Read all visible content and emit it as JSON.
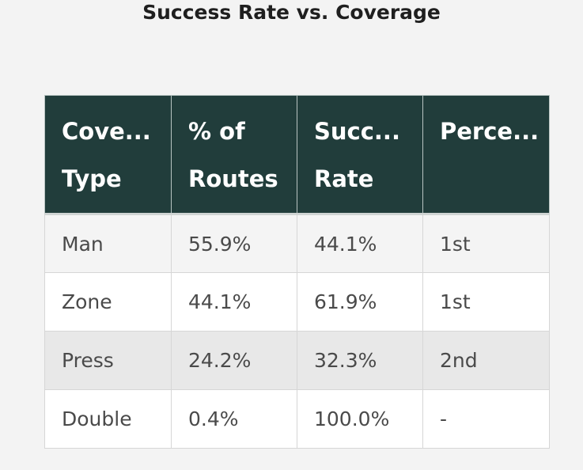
{
  "title": "Success Rate vs. Coverage",
  "table": {
    "headers": [
      [
        "Cove...",
        "Type"
      ],
      [
        "% of",
        "Routes"
      ],
      [
        "Succ...",
        "Rate"
      ],
      [
        "Perce...",
        ""
      ]
    ],
    "rows": [
      [
        "Man",
        "55.9%",
        "44.1%",
        "1st"
      ],
      [
        "Zone",
        "44.1%",
        "61.9%",
        "1st"
      ],
      [
        "Press",
        "24.2%",
        "32.3%",
        "2nd"
      ],
      [
        "Double",
        "0.4%",
        "100.0%",
        "-"
      ]
    ]
  },
  "chart_data": {
    "type": "table",
    "title": "Success Rate vs. Coverage",
    "columns": [
      "Cove... Type",
      "% of Routes",
      "Succ... Rate",
      "Perce..."
    ],
    "rows": [
      {
        "coverage_type": "Man",
        "pct_of_routes": 55.9,
        "success_rate": 44.1,
        "percentile": "1st"
      },
      {
        "coverage_type": "Zone",
        "pct_of_routes": 44.1,
        "success_rate": 61.9,
        "percentile": "1st"
      },
      {
        "coverage_type": "Press",
        "pct_of_routes": 24.2,
        "success_rate": 32.3,
        "percentile": "2nd"
      },
      {
        "coverage_type": "Double",
        "pct_of_routes": 0.4,
        "success_rate": 100.0,
        "percentile": "-"
      }
    ]
  }
}
